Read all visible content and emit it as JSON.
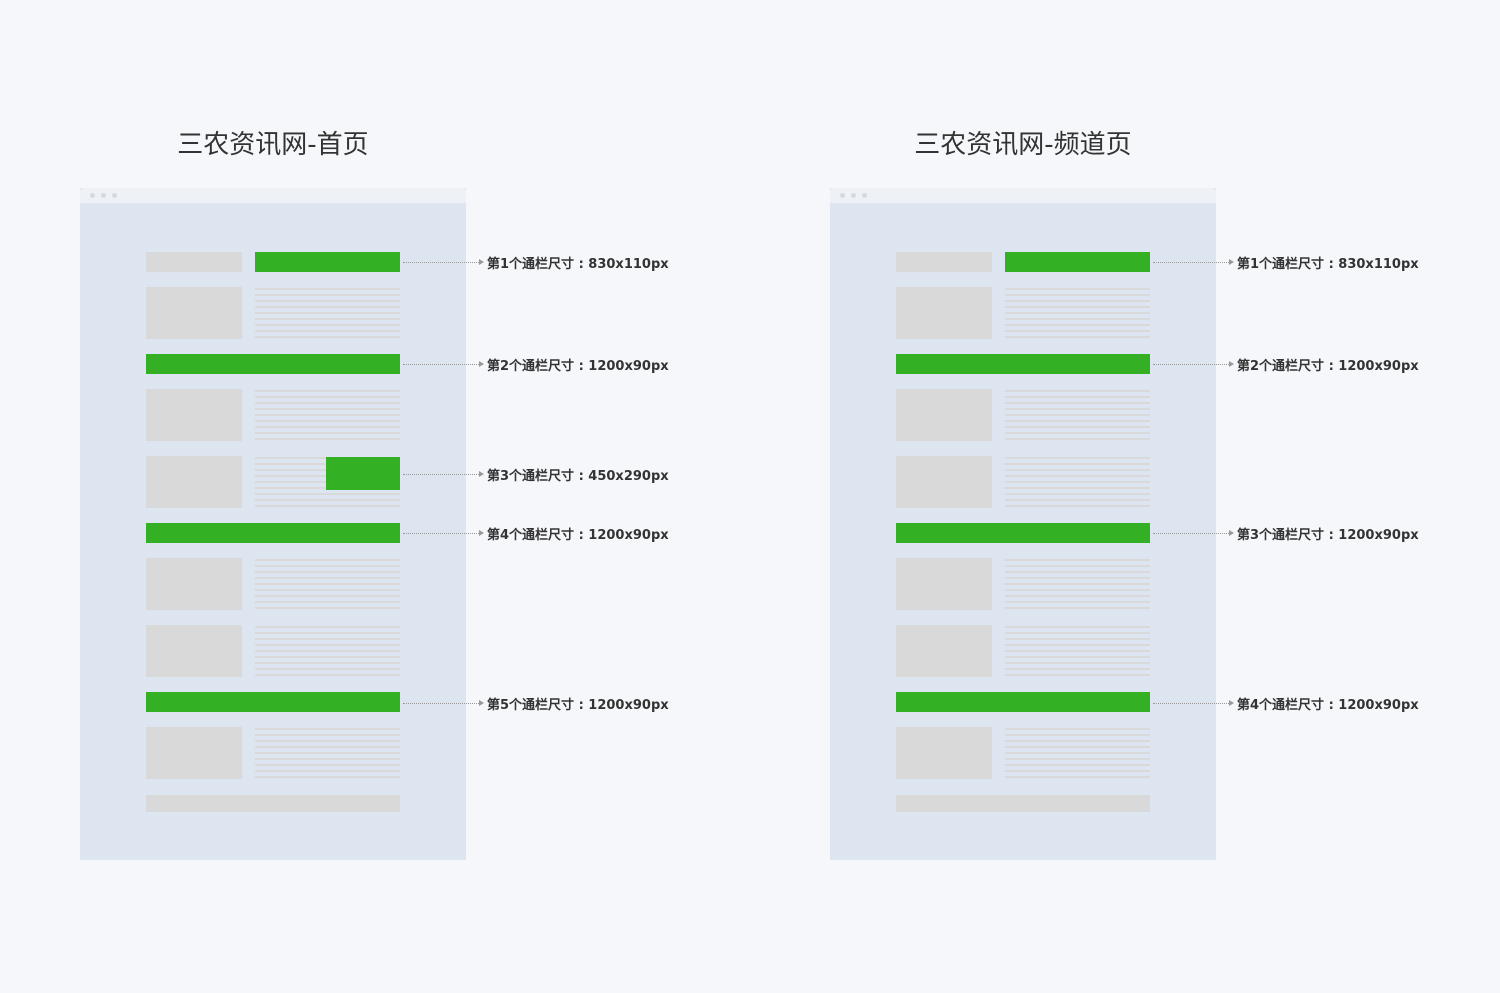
{
  "diagrams": [
    {
      "title": "三农资讯网-首页",
      "labels": [
        "第1个通栏尺寸 : 830x110px",
        "第2个通栏尺寸 : 1200x90px",
        "第3个通栏尺寸 : 450x290px",
        "第4个通栏尺寸 : 1200x90px",
        "第5个通栏尺寸 : 1200x90px"
      ]
    },
    {
      "title": "三农资讯网-频道页",
      "labels": [
        "第1个通栏尺寸 : 830x110px",
        "第2个通栏尺寸 : 1200x90px",
        "第3个通栏尺寸 : 1200x90px",
        "第4个通栏尺寸 : 1200x90px"
      ]
    }
  ],
  "colors": {
    "ad_slot": "#33b024",
    "placeholder": "#d9d9d9",
    "browser": "#dde6f0"
  }
}
